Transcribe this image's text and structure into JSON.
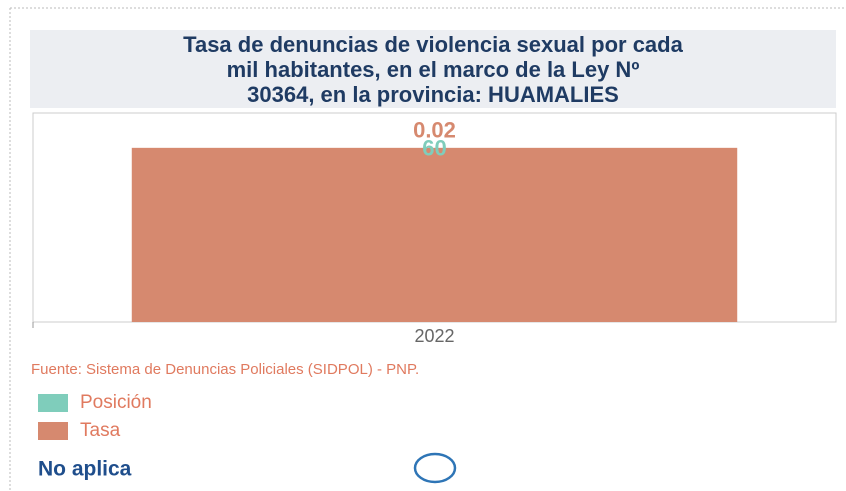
{
  "chart_data": {
    "type": "bar",
    "title": "Tasa de denuncias de violencia sexual por cada mil habitantes, en el marco de la Ley Nº 30364, en la provincia: HUAMALIES",
    "categories": [
      "2022"
    ],
    "series": [
      {
        "name": "Posición",
        "color": "#7fcdbb",
        "values": [
          60
        ],
        "axis": "y2"
      },
      {
        "name": "Tasa",
        "color": "#d6896f",
        "values": [
          0.02
        ]
      }
    ],
    "ylim": [
      0,
      0.024
    ],
    "y2lim": [
      0,
      72
    ],
    "source": "Fuente: Sistema de Denuncias Policiales (SIDPOL) - PNP.",
    "status": "No aplica"
  }
}
